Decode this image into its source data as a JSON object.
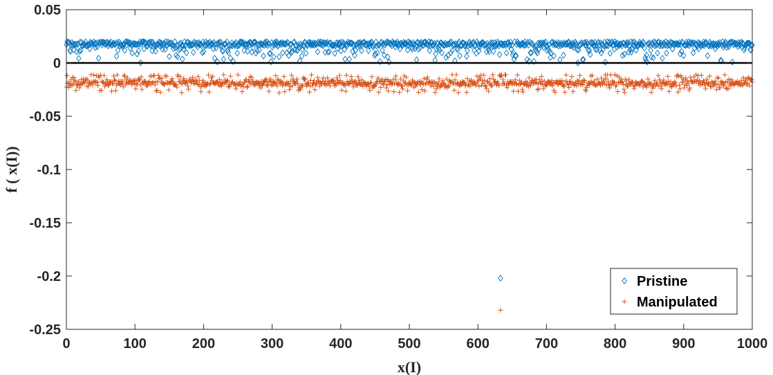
{
  "chart_data": {
    "type": "scatter",
    "title": "",
    "xlabel": "x(I)",
    "ylabel": "f ( x(I))",
    "xlim": [
      0,
      1000
    ],
    "ylim": [
      -0.25,
      0.05
    ],
    "xticks": [
      "0",
      "100",
      "200",
      "300",
      "400",
      "500",
      "600",
      "700",
      "800",
      "900",
      "1000"
    ],
    "yticks": [
      "0.05",
      "0",
      "-0.05",
      "-0.1",
      "-0.15",
      "-0.2",
      "-0.25"
    ],
    "grid": false,
    "legend_position": "bottom-right",
    "reference_line_y": 0,
    "series": [
      {
        "name": "Pristine",
        "marker": "diamond",
        "color": "#0072BD",
        "n_points": 1000,
        "typical_y": 0.018,
        "y_range": [
          0.0,
          0.02
        ],
        "outliers": [
          {
            "x": 633,
            "y": -0.202
          }
        ]
      },
      {
        "name": "Manipulated",
        "marker": "plus",
        "color": "#D95319",
        "n_points": 1000,
        "typical_y": -0.019,
        "y_range": [
          -0.028,
          -0.011
        ],
        "outliers": [
          {
            "x": 633,
            "y": -0.232
          }
        ]
      }
    ]
  }
}
